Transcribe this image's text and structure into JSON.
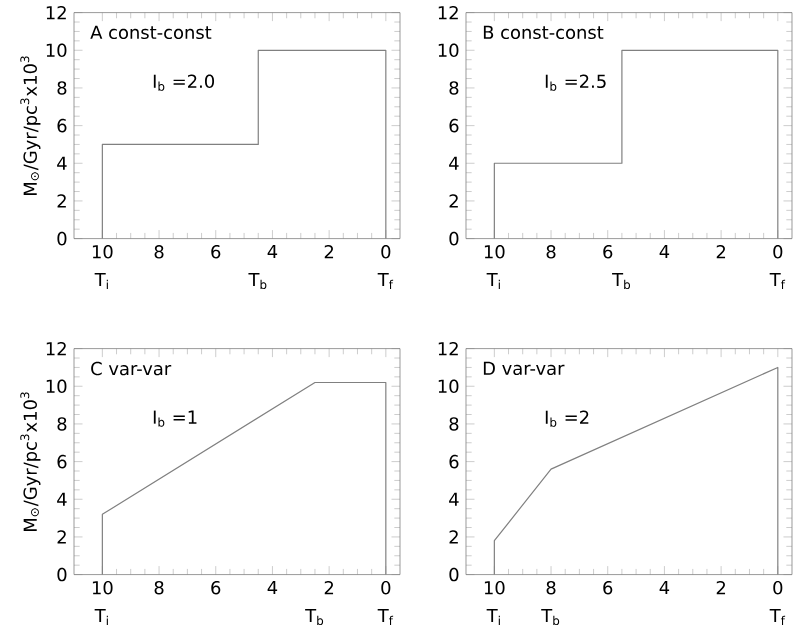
{
  "chart_data": [
    {
      "type": "line",
      "title": "A const-const",
      "ylabel": "M$_{⊙}$/Gyr/pc$^{3}$x10$^{3}$",
      "color": "#808080",
      "x": [
        10,
        10,
        4.5,
        4.5,
        0,
        0
      ],
      "values": [
        0,
        5,
        5,
        10,
        10,
        0
      ],
      "annotations": [
        "I$_{b}$ =2.0",
        "T$_{i}$",
        "T$_{b}$",
        "T$_{f}$"
      ],
      "xlim": [
        11,
        -0.5
      ],
      "xticks": [
        10,
        8,
        6,
        4,
        2,
        0
      ],
      "ylim": [
        0,
        12
      ],
      "yticks": [
        0,
        2,
        4,
        6,
        8,
        10,
        12
      ]
    },
    {
      "type": "line",
      "title": "B const-const",
      "color": "#808080",
      "x": [
        10,
        10,
        5.5,
        5.5,
        0,
        0
      ],
      "values": [
        0,
        4,
        4,
        10,
        10,
        0
      ],
      "annotations": [
        "I$_{b}$ =2.5",
        "T$_{i}$",
        "T$_{b}$",
        "T$_{f}$"
      ],
      "xlim": [
        11,
        -0.5
      ],
      "xticks": [
        10,
        8,
        6,
        4,
        2,
        0
      ],
      "ylim": [
        0,
        12
      ],
      "yticks": [
        0,
        2,
        4,
        6,
        8,
        10,
        12
      ]
    },
    {
      "type": "line",
      "title": "C  var-var",
      "ylabel": "M$_{⊙}$/Gyr/pc$^{3}$x10$^{3}$",
      "color": "#808080",
      "x": [
        10,
        10,
        2.5,
        0,
        0
      ],
      "values": [
        0,
        3.2,
        10.2,
        10.2,
        0
      ],
      "annotations": [
        "I$_{b}$ =1",
        "T$_{i}$",
        "T$_{b}$",
        "T$_{f}$"
      ],
      "xlim": [
        11,
        -0.5
      ],
      "xticks": [
        10,
        8,
        6,
        4,
        2,
        0
      ],
      "ylim": [
        0,
        12
      ],
      "yticks": [
        0,
        2,
        4,
        6,
        8,
        10,
        12
      ]
    },
    {
      "type": "line",
      "title": "D  var-var",
      "color": "#808080",
      "x": [
        10,
        10,
        8,
        0,
        0
      ],
      "values": [
        0,
        1.8,
        5.6,
        11,
        0
      ],
      "annotations": [
        "I$_{b}$ =2",
        "T$_{i}$",
        "T$_{b}$",
        "T$_{f}$"
      ],
      "xlim": [
        11,
        -0.5
      ],
      "xticks": [
        10,
        8,
        6,
        4,
        2,
        0
      ],
      "ylim": [
        0,
        12
      ],
      "yticks": [
        0,
        2,
        4,
        6,
        8,
        10,
        12
      ]
    }
  ]
}
